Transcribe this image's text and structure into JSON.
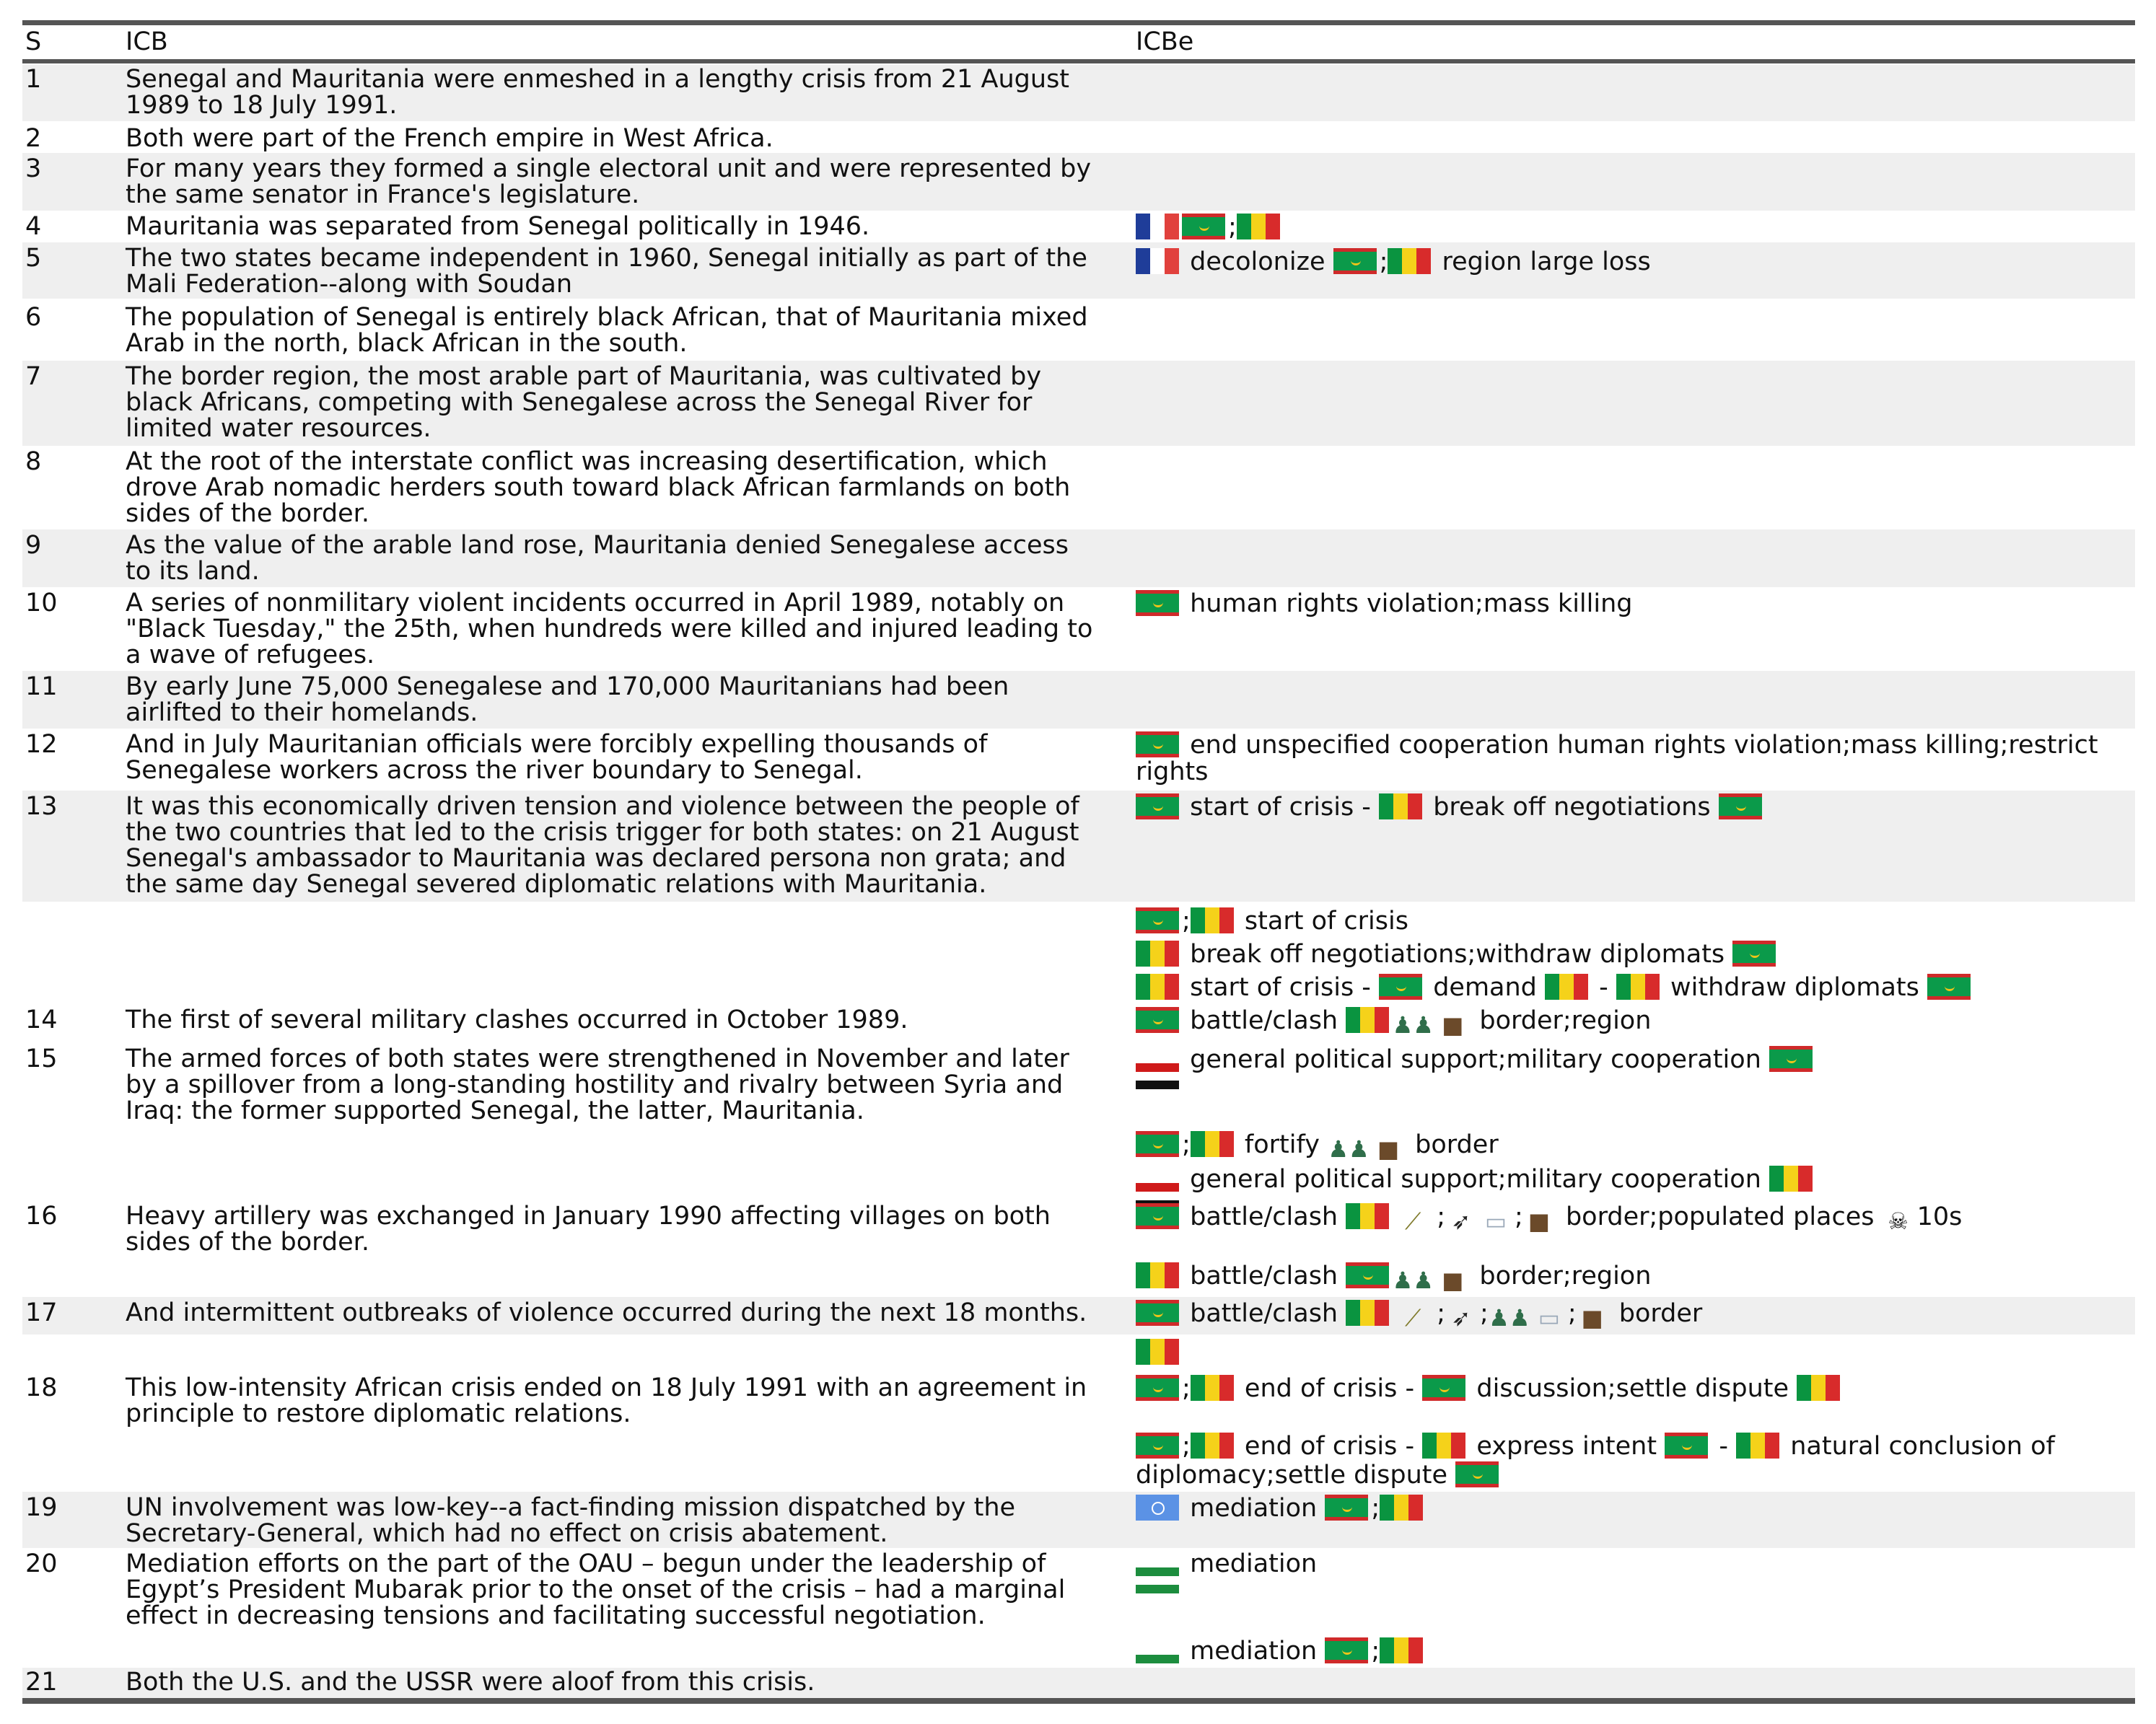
{
  "table": {
    "headers": {
      "s": "S",
      "icb": "ICB",
      "icbe": "ICBe"
    },
    "rows": [
      {
        "s": "1",
        "icb": [
          "Senegal and Mauritania were enmeshed in a lengthy crisis from 21 August",
          "1989 to 18 July 1991."
        ],
        "icbe": []
      },
      {
        "s": "2",
        "icb": [
          "Both were part of the French empire in West Africa."
        ],
        "icbe": []
      },
      {
        "s": "3",
        "icb": [
          "For many years they formed a single electoral unit and were represented by",
          "the same senator in France's legislature."
        ],
        "icbe": []
      },
      {
        "s": "4",
        "icb": [
          "Mauritania was separated from Senegal politically in 1946."
        ],
        "icbe": [
          [
            {
              "icon": "flag-france"
            },
            {
              "icon": "flag-mauritania"
            },
            {
              "text": ";"
            },
            {
              "icon": "flag-senegal"
            }
          ]
        ]
      },
      {
        "s": "5",
        "icb": [
          "The two states became independent in 1960, Senegal initially as part of the",
          "Mali Federation--along with Soudan"
        ],
        "icbe": [
          [
            {
              "icon": "flag-france"
            },
            {
              "text": " decolonize "
            },
            {
              "icon": "flag-mauritania"
            },
            {
              "text": ";"
            },
            {
              "icon": "flag-senegal"
            },
            {
              "text": " region large loss"
            }
          ]
        ]
      },
      {
        "s": "6",
        "icb": [
          "The population of Senegal is entirely black African, that of Mauritania mixed",
          "Arab in the north, black African in the south."
        ],
        "icbe": []
      },
      {
        "s": "7",
        "icb": [
          "The border region, the most arable part of Mauritania, was cultivated by",
          "black Africans, competing with Senegalese across the Senegal River for",
          "limited water resources."
        ],
        "icbe": []
      },
      {
        "s": "8",
        "icb": [
          "At the root of the interstate conflict was increasing desertification, which",
          "drove Arab nomadic herders south toward black African farmlands on both",
          "sides of the border."
        ],
        "icbe": []
      },
      {
        "s": "9",
        "icb": [
          "As the value of the arable land rose, Mauritania denied Senegalese access",
          "to its land."
        ],
        "icbe": []
      },
      {
        "s": "10",
        "icb": [
          "A series of nonmilitary violent incidents occurred in April 1989, notably on",
          "\"Black Tuesday,\" the 25th, when hundreds were killed and injured leading to",
          "a wave of refugees."
        ],
        "icbe": [
          [
            {
              "icon": "flag-mauritania"
            },
            {
              "text": " human rights violation;mass killing"
            }
          ]
        ]
      },
      {
        "s": "11",
        "icb": [
          "By early June 75,000 Senegalese and 170,000 Mauritanians had been",
          "airlifted to their homelands."
        ],
        "icbe": []
      },
      {
        "s": "12",
        "icb": [
          "And in July Mauritanian officials were forcibly expelling thousands of",
          "Senegalese workers across the river boundary to Senegal."
        ],
        "icbe": [
          [
            {
              "icon": "flag-mauritania"
            },
            {
              "text": " end unspecified cooperation human rights violation;mass killing;restrict"
            }
          ],
          [
            {
              "text": "rights"
            }
          ]
        ]
      },
      {
        "s": "13",
        "icb": [
          "It was this economically driven tension and violence between the people of",
          "the two countries that led to the crisis trigger for both states: on 21 August",
          "Senegal's ambassador to Mauritania was declared persona non grata; and",
          "the same day Senegal severed diplomatic relations with Mauritania."
        ],
        "icbe": [
          [
            {
              "icon": "flag-mauritania"
            },
            {
              "text": " start of crisis - "
            },
            {
              "icon": "flag-senegal"
            },
            {
              "text": " break off negotiations "
            },
            {
              "icon": "flag-mauritania"
            }
          ]
        ]
      },
      {
        "s": "",
        "icb": [],
        "icbe": [
          [
            {
              "icon": "flag-mauritania"
            },
            {
              "text": ";"
            },
            {
              "icon": "flag-senegal"
            },
            {
              "text": " start of crisis"
            }
          ],
          [
            {
              "icon": "flag-senegal"
            },
            {
              "text": " break off negotiations;withdraw diplomats "
            },
            {
              "icon": "flag-mauritania"
            }
          ],
          [
            {
              "icon": "flag-senegal"
            },
            {
              "text": " start of crisis - "
            },
            {
              "icon": "flag-mauritania"
            },
            {
              "text": " demand "
            },
            {
              "icon": "flag-senegal"
            },
            {
              "text": " - "
            },
            {
              "icon": "flag-senegal"
            },
            {
              "text": " withdraw diplomats "
            },
            {
              "icon": "flag-mauritania"
            }
          ]
        ]
      },
      {
        "s": "14",
        "icb": [
          "The first of several military clashes occurred in October 1989."
        ],
        "icbe": [
          [
            {
              "icon": "flag-mauritania"
            },
            {
              "text": " battle/clash "
            },
            {
              "icon": "flag-senegal"
            },
            {
              "icon": "troops"
            },
            {
              "icon": "territory-box"
            },
            {
              "text": " border;region"
            }
          ]
        ]
      },
      {
        "s": "15",
        "icb": [
          "The armed forces of both states were strengthened in November and later",
          "by a spillover from a long-standing hostility and rivalry between Syria and",
          "Iraq: the former supported Senegal, the latter, Mauritania."
        ],
        "icbe": [
          [
            {
              "icon": "flag-iraq"
            },
            {
              "text": " general political support;military cooperation "
            },
            {
              "icon": "flag-mauritania"
            }
          ]
        ]
      },
      {
        "s": "",
        "icb": [],
        "icbe": [
          [
            {
              "icon": "flag-mauritania"
            },
            {
              "text": ";"
            },
            {
              "icon": "flag-senegal"
            },
            {
              "text": " fortify "
            },
            {
              "icon": "troops"
            },
            {
              "icon": "territory-box"
            },
            {
              "text": " border"
            }
          ],
          [
            {
              "icon": "flag-syria"
            },
            {
              "text": " general political support;military cooperation "
            },
            {
              "icon": "flag-senegal"
            }
          ]
        ]
      },
      {
        "s": "16",
        "icb": [
          "Heavy artillery was exchanged in January 1990 affecting villages on both",
          "sides of the border."
        ],
        "icbe": [
          [
            {
              "icon": "flag-mauritania"
            },
            {
              "text": " battle/clash "
            },
            {
              "icon": "flag-senegal"
            },
            {
              "icon": "artillery"
            },
            {
              "text": ";"
            },
            {
              "icon": "rocket"
            },
            {
              "icon": "wall"
            },
            {
              "text": ";"
            },
            {
              "icon": "territory-box"
            },
            {
              "text": " border;populated places "
            },
            {
              "icon": "skull"
            },
            {
              "text": "10s"
            }
          ],
          [],
          [
            {
              "icon": "flag-senegal"
            },
            {
              "text": " battle/clash "
            },
            {
              "icon": "flag-mauritania"
            },
            {
              "icon": "troops"
            },
            {
              "icon": "territory-box"
            },
            {
              "text": " border;region"
            }
          ]
        ]
      },
      {
        "s": "17",
        "icb": [
          "And intermittent outbreaks of violence occurred during the next 18 months."
        ],
        "icbe": [
          [
            {
              "icon": "flag-mauritania"
            },
            {
              "text": " battle/clash "
            },
            {
              "icon": "flag-senegal"
            },
            {
              "icon": "artillery"
            },
            {
              "text": ";"
            },
            {
              "icon": "rocket"
            },
            {
              "text": ";"
            },
            {
              "icon": "troops"
            },
            {
              "icon": "wall"
            },
            {
              "text": ";"
            },
            {
              "icon": "territory-box"
            },
            {
              "text": " border"
            }
          ]
        ]
      },
      {
        "s": "18",
        "icb": [
          "This low-intensity African crisis ended on 18 July 1991 with an agreement in",
          "principle to restore diplomatic relations."
        ],
        "icbe": [
          [
            {
              "icon": "flag-senegal"
            }
          ],
          [
            {
              "icon": "flag-mauritania"
            },
            {
              "text": ";"
            },
            {
              "icon": "flag-senegal"
            },
            {
              "text": " end of crisis - "
            },
            {
              "icon": "flag-mauritania"
            },
            {
              "text": " discussion;settle dispute "
            },
            {
              "icon": "flag-senegal"
            }
          ],
          [],
          [
            {
              "icon": "flag-mauritania"
            },
            {
              "text": ";"
            },
            {
              "icon": "flag-senegal"
            },
            {
              "text": " end of crisis - "
            },
            {
              "icon": "flag-senegal"
            },
            {
              "text": " express intent "
            },
            {
              "icon": "flag-mauritania"
            },
            {
              "text": " - "
            },
            {
              "icon": "flag-senegal"
            },
            {
              "text": " natural conclusion of"
            }
          ],
          [
            {
              "text": "diplomacy;settle dispute "
            },
            {
              "icon": "flag-mauritania"
            }
          ]
        ]
      },
      {
        "s": "19",
        "icb": [
          "UN involvement was low-key--a fact-finding mission dispatched by the",
          "Secretary-General, which had no effect on crisis abatement."
        ],
        "icbe": [
          [
            {
              "icon": "flag-un"
            },
            {
              "text": " mediation "
            },
            {
              "icon": "flag-mauritania"
            },
            {
              "text": ";"
            },
            {
              "icon": "flag-senegal"
            }
          ]
        ]
      },
      {
        "s": "20",
        "icb": [
          "Mediation efforts on the part of the OAU – begun under the leadership of",
          "Egypt’s President Mubarak prior to the onset of the crisis – had a marginal",
          "effect in decreasing tensions and facilitating successful negotiation."
        ],
        "icbe": [
          [
            {
              "icon": "flag-oau"
            },
            {
              "text": " mediation"
            }
          ],
          [],
          [],
          [
            {
              "icon": "flag-oau"
            },
            {
              "text": " mediation "
            },
            {
              "icon": "flag-mauritania"
            },
            {
              "text": ";"
            },
            {
              "icon": "flag-senegal"
            }
          ]
        ]
      },
      {
        "s": "21",
        "icb": [
          "Both the U.S. and the USSR were aloof from this crisis."
        ],
        "icbe": []
      }
    ]
  }
}
